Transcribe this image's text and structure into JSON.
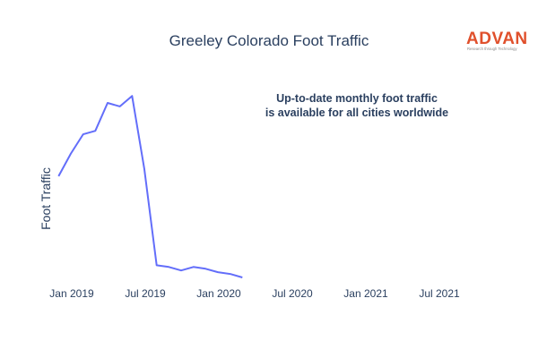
{
  "logo": {
    "name": "ADVAN",
    "tagline": "Research through Technology",
    "color": "#e0502c"
  },
  "chart_data": {
    "type": "line",
    "title": "Greeley Colorado Foot Traffic",
    "xlabel": "",
    "ylabel": "Foot Traffic",
    "x_tick_labels": [
      "Jan 2019",
      "Jul 2019",
      "Jan 2020",
      "Jul 2020",
      "Jan 2021",
      "Jul 2021"
    ],
    "xlim": [
      "2018-12-01",
      "2021-09-01"
    ],
    "ylim": [
      0,
      100
    ],
    "grid": false,
    "line_color": "#636efa",
    "annotation": [
      "Up-to-date monthly foot traffic",
      "is available for all cities worldwide"
    ],
    "series": [
      {
        "x": [
          "2018-12",
          "2019-01",
          "2019-02",
          "2019-03",
          "2019-04",
          "2019-05",
          "2019-06",
          "2019-07",
          "2019-08",
          "2019-09",
          "2019-10",
          "2019-11",
          "2019-12",
          "2020-01",
          "2020-02",
          "2020-03",
          "2020-04"
        ],
        "values": [
          58,
          71,
          82,
          84,
          100,
          98,
          104,
          62,
          7,
          6,
          4,
          6,
          5,
          3,
          2,
          0,
          null
        ]
      }
    ]
  }
}
